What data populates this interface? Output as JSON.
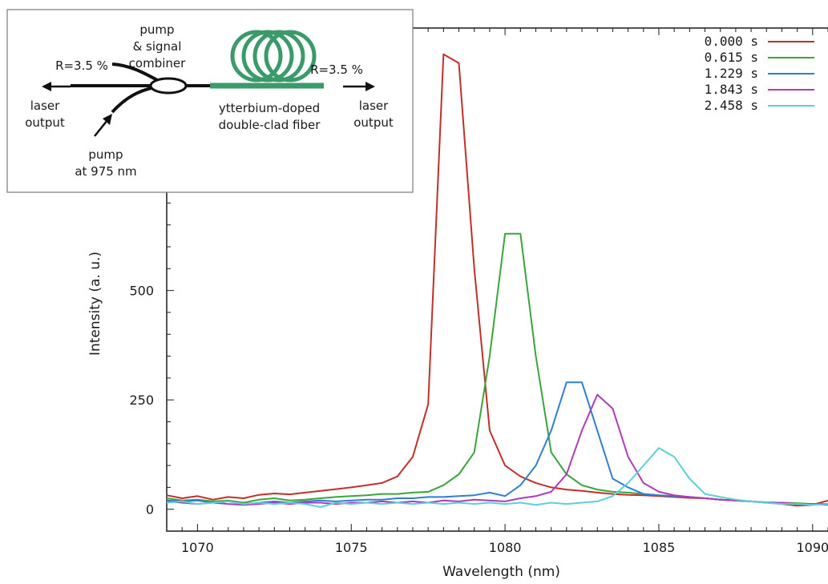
{
  "chart_data": {
    "type": "line",
    "title": "",
    "xlabel": "Wavelength (nm)",
    "ylabel": "Intensity (a. u.)",
    "xlim": [
      1069,
      1090.5
    ],
    "ylim": [
      -50,
      1100
    ],
    "x_ticks": [
      1070,
      1075,
      1080,
      1085,
      1090
    ],
    "y_ticks": [
      0,
      250,
      500
    ],
    "grid": false,
    "legend_position": "top-right",
    "series": [
      {
        "name": "0.000 s",
        "color": "#c0302a",
        "x": [
          1069,
          1069.5,
          1070,
          1070.5,
          1071,
          1071.5,
          1072,
          1072.5,
          1073,
          1073.5,
          1074,
          1074.5,
          1075,
          1075.5,
          1076,
          1076.5,
          1077,
          1077.5,
          1078,
          1078.5,
          1079,
          1079.5,
          1080,
          1080.5,
          1081,
          1081.5,
          1082,
          1082.5,
          1083,
          1083.5,
          1084,
          1084.5,
          1085,
          1085.5,
          1086,
          1086.5,
          1087,
          1087.5,
          1088,
          1088.5,
          1089,
          1089.5,
          1090,
          1090.5
        ],
        "y": [
          32,
          25,
          30,
          22,
          28,
          25,
          33,
          36,
          34,
          38,
          42,
          46,
          50,
          55,
          60,
          75,
          120,
          240,
          1040,
          1020,
          550,
          180,
          100,
          75,
          60,
          50,
          45,
          42,
          38,
          35,
          33,
          32,
          30,
          28,
          26,
          25,
          22,
          20,
          18,
          15,
          12,
          8,
          10,
          20
        ]
      },
      {
        "name": "0.615 s",
        "color": "#3aa53a",
        "x": [
          1069,
          1069.5,
          1070,
          1070.5,
          1071,
          1071.5,
          1072,
          1072.5,
          1073,
          1073.5,
          1074,
          1074.5,
          1075,
          1075.5,
          1076,
          1076.5,
          1077,
          1077.5,
          1078,
          1078.5,
          1079,
          1079.5,
          1080,
          1080.5,
          1081,
          1081.5,
          1082,
          1082.5,
          1083,
          1083.5,
          1084,
          1084.5,
          1085,
          1085.5,
          1086,
          1086.5,
          1087,
          1087.5,
          1088,
          1088.5,
          1089,
          1089.5,
          1090,
          1090.5
        ],
        "y": [
          25,
          20,
          22,
          18,
          20,
          15,
          22,
          25,
          20,
          22,
          25,
          28,
          30,
          32,
          35,
          35,
          38,
          40,
          55,
          80,
          130,
          350,
          630,
          630,
          350,
          130,
          80,
          55,
          45,
          40,
          38,
          35,
          32,
          30,
          28,
          25,
          22,
          20,
          18,
          16,
          15,
          14,
          12,
          12
        ]
      },
      {
        "name": "1.229 s",
        "color": "#2f7fd0",
        "x": [
          1069,
          1069.5,
          1070,
          1070.5,
          1071,
          1071.5,
          1072,
          1072.5,
          1073,
          1073.5,
          1074,
          1074.5,
          1075,
          1075.5,
          1076,
          1076.5,
          1077,
          1077.5,
          1078,
          1078.5,
          1079,
          1079.5,
          1080,
          1080.5,
          1081,
          1081.5,
          1082,
          1082.5,
          1083,
          1083.5,
          1084,
          1084.5,
          1085,
          1085.5,
          1086,
          1086.5,
          1087,
          1087.5,
          1088,
          1088.5,
          1089,
          1089.5,
          1090,
          1090.5
        ],
        "y": [
          20,
          18,
          20,
          15,
          18,
          12,
          15,
          18,
          15,
          18,
          20,
          18,
          20,
          22,
          22,
          25,
          25,
          28,
          28,
          30,
          32,
          38,
          30,
          55,
          100,
          180,
          290,
          290,
          180,
          70,
          50,
          35,
          32,
          30,
          28,
          25,
          22,
          20,
          18,
          15,
          14,
          12,
          12,
          10
        ]
      },
      {
        "name": "1.843 s",
        "color": "#b03ab8",
        "x": [
          1069,
          1069.5,
          1070,
          1070.5,
          1071,
          1071.5,
          1072,
          1072.5,
          1073,
          1073.5,
          1074,
          1074.5,
          1075,
          1075.5,
          1076,
          1076.5,
          1077,
          1077.5,
          1078,
          1078.5,
          1079,
          1079.5,
          1080,
          1080.5,
          1081,
          1081.5,
          1082,
          1082.5,
          1083,
          1083.5,
          1084,
          1084.5,
          1085,
          1085.5,
          1086,
          1086.5,
          1087,
          1087.5,
          1088,
          1088.5,
          1089,
          1089.5,
          1090,
          1090.5
        ],
        "y": [
          18,
          15,
          12,
          15,
          12,
          10,
          12,
          15,
          12,
          15,
          15,
          12,
          15,
          15,
          18,
          15,
          18,
          15,
          20,
          18,
          22,
          20,
          18,
          25,
          30,
          40,
          80,
          180,
          262,
          230,
          120,
          60,
          40,
          32,
          28,
          25,
          22,
          20,
          18,
          15,
          15,
          12,
          12,
          12
        ]
      },
      {
        "name": "2.458 s",
        "color": "#5ccfd8",
        "x": [
          1069,
          1069.5,
          1070,
          1070.5,
          1071,
          1071.5,
          1072,
          1072.5,
          1073,
          1073.5,
          1074,
          1074.5,
          1075,
          1075.5,
          1076,
          1076.5,
          1077,
          1077.5,
          1078,
          1078.5,
          1079,
          1079.5,
          1080,
          1080.5,
          1081,
          1081.5,
          1082,
          1082.5,
          1083,
          1083.5,
          1084,
          1084.5,
          1085,
          1085.5,
          1086,
          1086.5,
          1087,
          1087.5,
          1088,
          1088.5,
          1089,
          1089.5,
          1090,
          1090.5
        ],
        "y": [
          15,
          18,
          12,
          15,
          18,
          12,
          15,
          12,
          15,
          12,
          5,
          15,
          12,
          15,
          12,
          15,
          12,
          15,
          12,
          15,
          12,
          15,
          12,
          15,
          10,
          15,
          12,
          15,
          18,
          30,
          60,
          100,
          140,
          120,
          70,
          35,
          28,
          22,
          18,
          15,
          12,
          12,
          10,
          12
        ]
      }
    ],
    "inset": {
      "labels": {
        "combiner": [
          "pump",
          "& signal",
          "combiner"
        ],
        "reflect_left": "R=3.5 %",
        "reflect_right": "R=3.5 %",
        "output_left": [
          "laser",
          "output"
        ],
        "output_right": [
          "laser",
          "output"
        ],
        "pump": [
          "pump",
          "at 975 nm"
        ],
        "fiber": [
          "ytterbium-doped",
          "double-clad fiber"
        ]
      },
      "fiber_color": "#3a9a6a"
    }
  }
}
